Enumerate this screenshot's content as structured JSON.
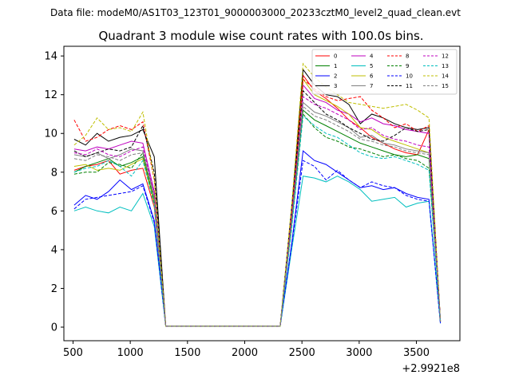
{
  "chart_data": {
    "type": "line",
    "suptitle": "Data file: modeM0/AS1T03_123T01_9000003000_20233cztM0_level2_quad_clean.evt",
    "title": "Quadrant 3 module wise count rates with 100.0s bins.",
    "xlabel": "",
    "ylabel": "",
    "x_offset_label": "+2.9921e8",
    "xlim": [
      420,
      3880
    ],
    "ylim": [
      -0.7,
      14.5
    ],
    "xticks": [
      500,
      1000,
      1500,
      2000,
      2500,
      3000,
      3500
    ],
    "yticks": [
      0,
      2,
      4,
      6,
      8,
      10,
      12,
      14
    ],
    "legend_position": "top-right",
    "x": [
      510,
      610,
      710,
      810,
      910,
      1010,
      1110,
      1210,
      1310,
      1410,
      1510,
      1610,
      1710,
      1810,
      1910,
      2010,
      2110,
      2210,
      2310,
      2410,
      2510,
      2610,
      2710,
      2810,
      2910,
      3010,
      3110,
      3210,
      3310,
      3410,
      3510,
      3610,
      3710
    ],
    "series": [
      {
        "name": "0",
        "color": "#ff0000",
        "dash": false,
        "values": [
          8.1,
          8.3,
          8.4,
          8.6,
          7.9,
          8.1,
          8.2,
          6.2,
          0.05,
          0.05,
          0.05,
          0.05,
          0.05,
          0.05,
          0.05,
          0.05,
          0.05,
          0.05,
          0.05,
          5.4,
          13.0,
          12.2,
          11.8,
          11.3,
          10.7,
          10.3,
          9.8,
          9.5,
          9.2,
          9.0,
          8.9,
          10.2,
          0.3
        ]
      },
      {
        "name": "1",
        "color": "#008000",
        "dash": false,
        "values": [
          8.0,
          8.3,
          8.5,
          8.7,
          8.3,
          8.5,
          8.8,
          6.5,
          0.05,
          0.05,
          0.05,
          0.05,
          0.05,
          0.05,
          0.05,
          0.05,
          0.05,
          0.05,
          0.05,
          5.3,
          11.2,
          10.7,
          10.4,
          10.1,
          9.8,
          9.5,
          9.3,
          9.1,
          8.9,
          8.8,
          8.9,
          8.7,
          0.3
        ]
      },
      {
        "name": "2",
        "color": "#0000ff",
        "dash": false,
        "values": [
          6.3,
          6.8,
          6.6,
          7.0,
          7.6,
          7.1,
          7.4,
          5.5,
          0.05,
          0.05,
          0.05,
          0.05,
          0.05,
          0.05,
          0.05,
          0.05,
          0.05,
          0.05,
          0.05,
          4.3,
          9.1,
          8.6,
          8.4,
          8.0,
          7.6,
          7.2,
          7.3,
          7.1,
          7.2,
          6.9,
          6.7,
          6.6,
          0.2
        ]
      },
      {
        "name": "3",
        "color": "#000000",
        "dash": false,
        "values": [
          9.7,
          9.4,
          10.0,
          9.6,
          9.8,
          9.9,
          10.2,
          8.8,
          0.05,
          0.05,
          0.05,
          0.05,
          0.05,
          0.05,
          0.05,
          0.05,
          0.05,
          0.05,
          0.05,
          6.0,
          13.3,
          12.5,
          12.0,
          11.9,
          11.5,
          10.5,
          11.0,
          10.8,
          10.5,
          10.3,
          10.2,
          10.3,
          0.3
        ]
      },
      {
        "name": "4",
        "color": "#bf00bf",
        "dash": false,
        "values": [
          9.2,
          9.1,
          9.3,
          9.2,
          9.4,
          9.6,
          9.5,
          7.0,
          0.05,
          0.05,
          0.05,
          0.05,
          0.05,
          0.05,
          0.05,
          0.05,
          0.05,
          0.05,
          0.05,
          5.8,
          12.5,
          11.8,
          11.6,
          11.2,
          11.0,
          10.6,
          10.8,
          10.5,
          10.4,
          10.2,
          10.1,
          10.0,
          0.3
        ]
      },
      {
        "name": "5",
        "color": "#00bfbf",
        "dash": false,
        "values": [
          6.0,
          6.2,
          6.0,
          5.9,
          6.2,
          6.0,
          6.9,
          5.2,
          0.05,
          0.05,
          0.05,
          0.05,
          0.05,
          0.05,
          0.05,
          0.05,
          0.05,
          0.05,
          0.05,
          4.0,
          7.8,
          7.7,
          7.5,
          7.8,
          7.5,
          7.1,
          6.5,
          6.6,
          6.7,
          6.2,
          6.4,
          6.5,
          0.2
        ]
      },
      {
        "name": "6",
        "color": "#bfbf00",
        "dash": false,
        "values": [
          8.3,
          8.4,
          8.1,
          8.2,
          8.1,
          8.4,
          8.7,
          6.4,
          0.05,
          0.05,
          0.05,
          0.05,
          0.05,
          0.05,
          0.05,
          0.05,
          0.05,
          0.05,
          0.05,
          5.5,
          12.8,
          12.0,
          11.7,
          11.4,
          11.0,
          10.3,
          10.2,
          9.8,
          9.6,
          9.4,
          9.2,
          9.0,
          0.3
        ]
      },
      {
        "name": "7",
        "color": "#808080",
        "dash": false,
        "values": [
          8.9,
          8.8,
          9.0,
          8.7,
          8.9,
          9.2,
          9.1,
          6.8,
          0.05,
          0.05,
          0.05,
          0.05,
          0.05,
          0.05,
          0.05,
          0.05,
          0.05,
          0.05,
          0.05,
          5.6,
          11.6,
          11.1,
          10.9,
          10.6,
          10.3,
          9.8,
          9.9,
          9.5,
          9.4,
          9.2,
          9.1,
          9.0,
          0.3
        ]
      },
      {
        "name": "8",
        "color": "#ff0000",
        "dash": true,
        "values": [
          10.7,
          9.6,
          9.8,
          10.2,
          10.4,
          10.2,
          10.6,
          7.6,
          0.05,
          0.05,
          0.05,
          0.05,
          0.05,
          0.05,
          0.05,
          0.05,
          0.05,
          0.05,
          0.05,
          5.9,
          12.8,
          12.3,
          11.9,
          11.7,
          11.8,
          11.9,
          11.2,
          10.8,
          10.3,
          10.5,
          10.1,
          10.4,
          0.3
        ]
      },
      {
        "name": "9",
        "color": "#008000",
        "dash": true,
        "values": [
          7.9,
          8.0,
          8.0,
          8.5,
          8.4,
          8.2,
          9.0,
          6.5,
          0.05,
          0.05,
          0.05,
          0.05,
          0.05,
          0.05,
          0.05,
          0.05,
          0.05,
          0.05,
          0.05,
          5.2,
          11.0,
          10.3,
          9.8,
          9.6,
          9.3,
          9.2,
          9.0,
          8.8,
          8.9,
          8.7,
          8.6,
          8.2,
          0.3
        ]
      },
      {
        "name": "10",
        "color": "#0000ff",
        "dash": true,
        "values": [
          6.1,
          6.6,
          6.7,
          6.8,
          6.9,
          7.0,
          7.3,
          5.4,
          0.05,
          0.05,
          0.05,
          0.05,
          0.05,
          0.05,
          0.05,
          0.05,
          0.05,
          0.05,
          0.05,
          4.2,
          8.6,
          8.3,
          7.6,
          8.1,
          7.6,
          7.2,
          7.5,
          7.3,
          7.2,
          6.8,
          6.6,
          6.5,
          0.2
        ]
      },
      {
        "name": "11",
        "color": "#000000",
        "dash": true,
        "values": [
          9.1,
          8.8,
          9.0,
          9.2,
          9.1,
          9.3,
          10.4,
          8.0,
          0.05,
          0.05,
          0.05,
          0.05,
          0.05,
          0.05,
          0.05,
          0.05,
          0.05,
          0.05,
          0.05,
          6.2,
          12.2,
          11.6,
          11.0,
          10.7,
          10.3,
          10.0,
          9.7,
          9.6,
          9.9,
          10.3,
          10.1,
          10.2,
          0.3
        ]
      },
      {
        "name": "12",
        "color": "#bf00bf",
        "dash": true,
        "values": [
          9.0,
          8.9,
          9.2,
          8.9,
          8.8,
          9.1,
          9.3,
          6.9,
          0.05,
          0.05,
          0.05,
          0.05,
          0.05,
          0.05,
          0.05,
          0.05,
          0.05,
          0.05,
          0.05,
          5.7,
          11.9,
          11.5,
          11.3,
          11.0,
          10.7,
          10.2,
          10.3,
          9.9,
          9.7,
          9.6,
          9.4,
          9.3,
          0.3
        ]
      },
      {
        "name": "13",
        "color": "#00bfbf",
        "dash": true,
        "values": [
          8.0,
          8.2,
          8.3,
          8.6,
          8.3,
          7.8,
          8.6,
          6.3,
          0.05,
          0.05,
          0.05,
          0.05,
          0.05,
          0.05,
          0.05,
          0.05,
          0.05,
          0.05,
          0.05,
          5.1,
          10.9,
          10.4,
          10.0,
          9.8,
          9.4,
          9.0,
          8.8,
          8.7,
          8.8,
          8.6,
          8.4,
          8.1,
          0.3
        ]
      },
      {
        "name": "14",
        "color": "#bfbf00",
        "dash": true,
        "values": [
          9.4,
          9.9,
          10.8,
          10.2,
          10.3,
          10.1,
          11.1,
          7.6,
          0.05,
          0.05,
          0.05,
          0.05,
          0.05,
          0.05,
          0.05,
          0.05,
          0.05,
          0.05,
          0.05,
          6.3,
          13.6,
          12.9,
          12.4,
          12.0,
          11.6,
          11.5,
          11.4,
          11.3,
          11.4,
          11.5,
          11.2,
          10.8,
          0.3
        ]
      },
      {
        "name": "15",
        "color": "#808080",
        "dash": true,
        "values": [
          8.7,
          8.6,
          8.9,
          8.8,
          8.6,
          8.9,
          9.0,
          6.7,
          0.05,
          0.05,
          0.05,
          0.05,
          0.05,
          0.05,
          0.05,
          0.05,
          0.05,
          0.05,
          0.05,
          5.5,
          11.4,
          10.9,
          10.7,
          10.4,
          10.1,
          9.7,
          9.6,
          9.4,
          9.3,
          9.1,
          9.0,
          8.9,
          0.3
        ]
      }
    ]
  }
}
